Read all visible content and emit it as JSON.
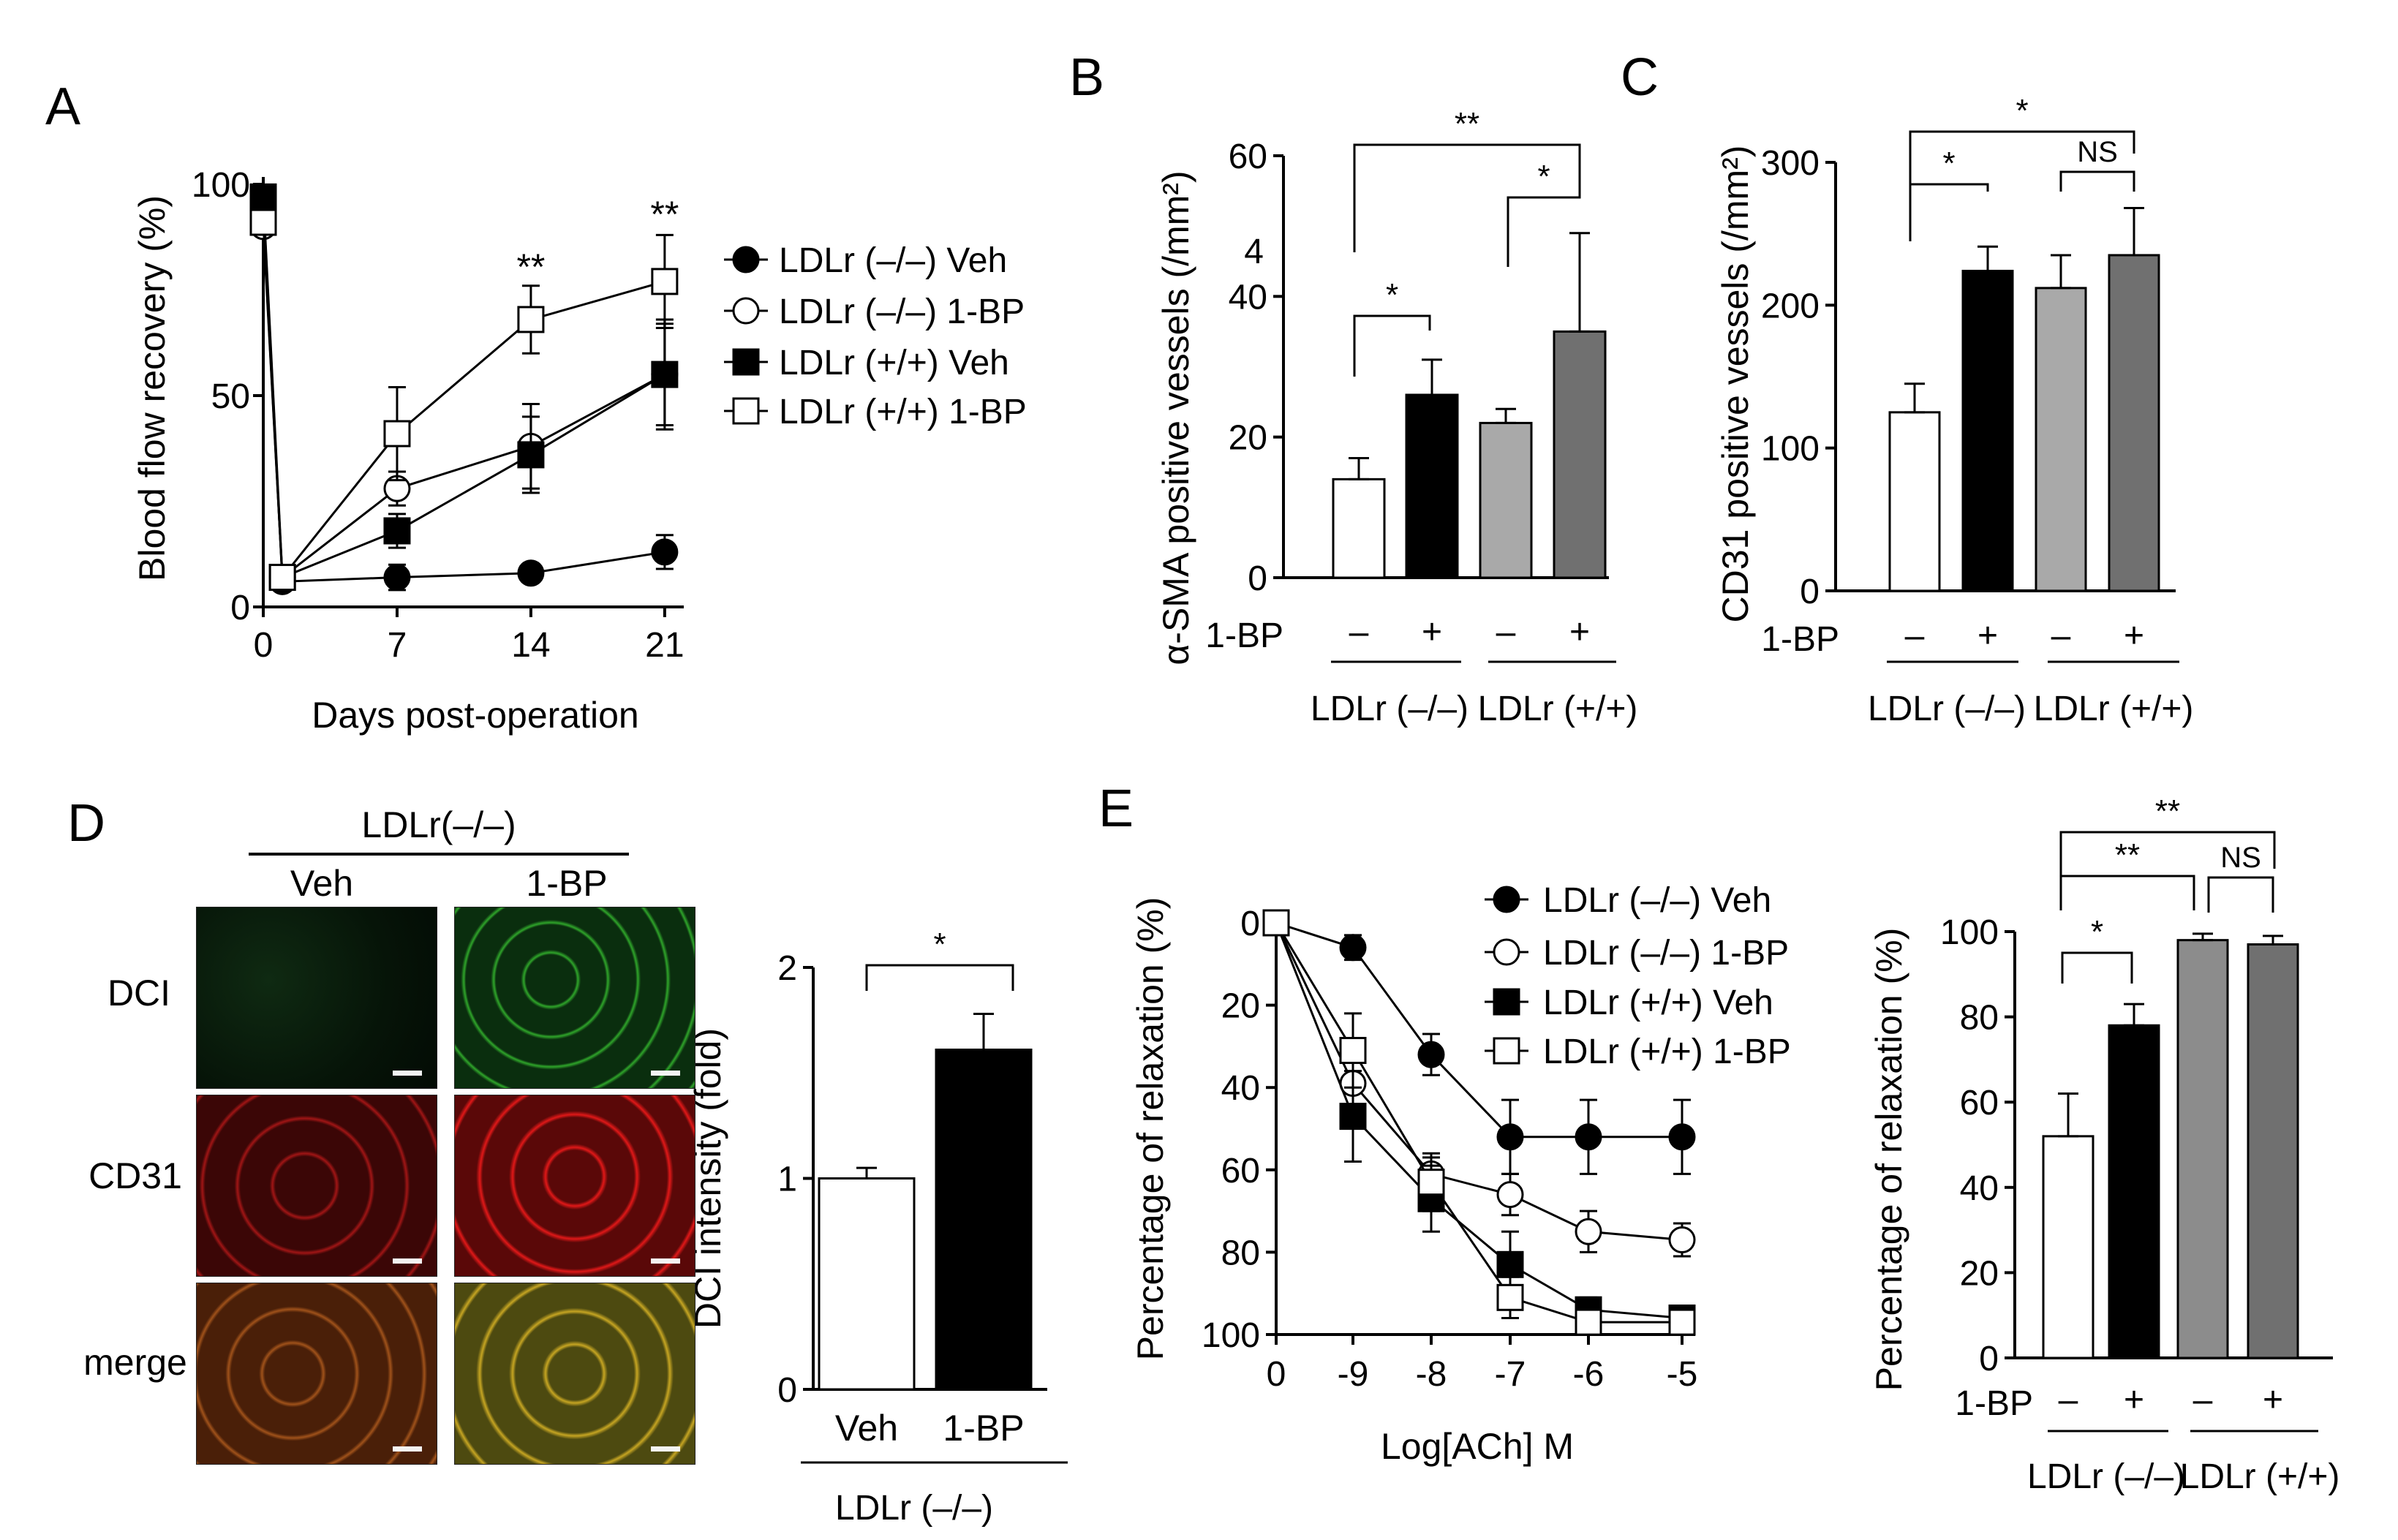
{
  "figure": {
    "panels": [
      {
        "letter": "A",
        "name": "panel-a"
      },
      {
        "letter": "B",
        "name": "panel-b"
      },
      {
        "letter": "C",
        "name": "panel-c"
      },
      {
        "letter": "D",
        "name": "panel-d"
      },
      {
        "letter": "E",
        "name": "panel-e"
      }
    ]
  },
  "colors": {
    "axis": "#000000",
    "white_bar": "#ffffff",
    "black_bar": "#000000",
    "light_gray_bar": "#a9a9a9",
    "dark_gray_bar": "#707070",
    "dci_green": "#33cc33",
    "cd31_red": "#e01818"
  },
  "microscopy": {
    "group_label": "LDLr(–/–)",
    "column_labels": [
      "Veh",
      "1-BP"
    ],
    "row_labels": [
      "DCI",
      "CD31",
      "merge"
    ]
  },
  "chart_data": [
    {
      "panel": "A",
      "type": "line",
      "xlabel": "Days post-operation",
      "ylabel": "Blood flow recovery (%)",
      "x": [
        0,
        1,
        7,
        14,
        21
      ],
      "xticks": [
        "0",
        "7",
        "14",
        "21"
      ],
      "xtick_values": [
        0,
        7,
        14,
        21
      ],
      "yticks": [
        "0",
        "50",
        "100"
      ],
      "ytick_values": [
        0,
        50,
        100
      ],
      "xlim": [
        0,
        22
      ],
      "ylim": [
        0,
        100
      ],
      "series": [
        {
          "name": "LDLr (–/–) Veh",
          "marker": "circle-filled",
          "values": [
            96,
            6,
            7,
            8,
            13
          ],
          "err": [
            2,
            2,
            3,
            2,
            4
          ]
        },
        {
          "name": "LDLr (–/–) 1-BP",
          "marker": "circle-open",
          "values": [
            90,
            7,
            28,
            38,
            55
          ],
          "err": [
            2,
            2,
            4,
            10,
            12
          ]
        },
        {
          "name": "LDLr (+/+) Veh",
          "marker": "square-filled",
          "values": [
            97,
            7,
            18,
            36,
            55
          ],
          "err": [
            2,
            2,
            4,
            9,
            13
          ]
        },
        {
          "name": "LDLr (+/+) 1-BP",
          "marker": "square-open",
          "values": [
            91,
            7,
            41,
            68,
            77
          ],
          "err": [
            2,
            2,
            11,
            8,
            11
          ]
        }
      ],
      "annotations": [
        {
          "x": 14,
          "text": "**"
        },
        {
          "x": 21,
          "text": "**"
        }
      ]
    },
    {
      "panel": "B",
      "type": "bar",
      "ylabel": "α-SMA positive vessels (/mm²)",
      "ylim": [
        0,
        60
      ],
      "yticks": [
        "0",
        "20",
        "40",
        "60"
      ],
      "ytick_values": [
        0,
        20,
        40,
        60
      ],
      "stray_tick": "4",
      "categories": [
        "–",
        "+",
        "–",
        "+"
      ],
      "row_label": "1-BP",
      "groups": [
        "LDLr (–/–)",
        "LDLr (+/+)"
      ],
      "values": [
        14,
        26,
        22,
        35
      ],
      "err": [
        3,
        5,
        2,
        14
      ],
      "bar_colors": [
        "#ffffff",
        "#000000",
        "#a9a9a9",
        "#707070"
      ],
      "significance": [
        {
          "from": 0,
          "to": 1,
          "text": "*"
        },
        {
          "from": 2,
          "to": 3,
          "text": "*"
        },
        {
          "from": 0,
          "to": 3,
          "text": "**"
        }
      ]
    },
    {
      "panel": "C",
      "type": "bar",
      "ylabel": "CD31 positive vessels (/mm²)",
      "ylim": [
        0,
        300
      ],
      "yticks": [
        "0",
        "100",
        "200",
        "300"
      ],
      "ytick_values": [
        0,
        100,
        200,
        300
      ],
      "categories": [
        "–",
        "+",
        "–",
        "+"
      ],
      "row_label": "1-BP",
      "groups": [
        "LDLr (–/–)",
        "LDLr (+/+)"
      ],
      "values": [
        125,
        224,
        212,
        235
      ],
      "err": [
        20,
        17,
        23,
        33
      ],
      "bar_colors": [
        "#ffffff",
        "#000000",
        "#a9a9a9",
        "#707070"
      ],
      "significance": [
        {
          "from": 0,
          "to": 1,
          "text": "*"
        },
        {
          "from": 2,
          "to": 3,
          "text": "NS"
        },
        {
          "from": 0,
          "to": 3,
          "text": "*"
        }
      ]
    },
    {
      "panel": "D",
      "type": "bar",
      "ylabel": "DCI intensity (fold)",
      "ylim": [
        0,
        2
      ],
      "yticks": [
        "0",
        "1",
        "2"
      ],
      "ytick_values": [
        0,
        1,
        2
      ],
      "categories": [
        "Veh",
        "1-BP"
      ],
      "group": "LDLr (–/–)",
      "values": [
        1.0,
        1.61
      ],
      "err": [
        0.05,
        0.17
      ],
      "bar_colors": [
        "#ffffff",
        "#000000"
      ],
      "significance": [
        {
          "from": 0,
          "to": 1,
          "text": "*"
        }
      ]
    },
    {
      "panel": "E",
      "type": "line",
      "ylabel": "Percentage of relaxation (%)",
      "xlabel": "Log[ACh] M",
      "x": [
        0,
        -9,
        -8,
        -7,
        -6,
        -5
      ],
      "xticks": [
        "0",
        "-9",
        "-8",
        "-7",
        "-6",
        "-5"
      ],
      "yticks": [
        "0",
        "20",
        "40",
        "60",
        "80",
        "100"
      ],
      "ytick_values": [
        0,
        20,
        40,
        60,
        80,
        100
      ],
      "ylim": [
        0,
        100
      ],
      "y_inverted": true,
      "series": [
        {
          "name": "LDLr (–/–) Veh",
          "marker": "circle-filled",
          "values": [
            0,
            6,
            32,
            52,
            52,
            52
          ],
          "err": [
            0,
            3,
            5,
            9,
            9,
            9
          ]
        },
        {
          "name": "LDLr (–/–) 1-BP",
          "marker": "circle-open",
          "values": [
            0,
            39,
            61,
            66,
            75,
            77
          ],
          "err": [
            0,
            6,
            4,
            5,
            5,
            4
          ]
        },
        {
          "name": "LDLr (+/+) Veh",
          "marker": "square-filled",
          "values": [
            0,
            47,
            67,
            83,
            94,
            96
          ],
          "err": [
            0,
            11,
            8,
            8,
            3,
            2
          ]
        },
        {
          "name": "LDLr (+/+) 1-BP",
          "marker": "square-open",
          "values": [
            0,
            31,
            63,
            91,
            97,
            97
          ],
          "err": [
            0,
            9,
            7,
            5,
            2,
            2
          ]
        }
      ]
    },
    {
      "panel": "E2",
      "type": "bar",
      "ylabel": "Percentage of relaxation (%)",
      "ylim": [
        0,
        100
      ],
      "yticks": [
        "0",
        "20",
        "40",
        "60",
        "80",
        "100"
      ],
      "ytick_values": [
        0,
        20,
        40,
        60,
        80,
        100
      ],
      "categories": [
        "–",
        "+",
        "–",
        "+"
      ],
      "row_label": "1-BP",
      "groups": [
        "LDLr (–/–)",
        "LDLr (+/+)"
      ],
      "values": [
        52,
        78,
        98,
        97
      ],
      "err": [
        10,
        5,
        1.5,
        2
      ],
      "bar_colors": [
        "#ffffff",
        "#000000",
        "#8c8c8c",
        "#707070"
      ],
      "significance": [
        {
          "from": 0,
          "to": 1,
          "text": "*"
        },
        {
          "from": 2,
          "to": 3,
          "text": "NS"
        },
        {
          "from": 0,
          "to": 2,
          "text": "**"
        },
        {
          "from": 0,
          "to": 3,
          "text": "**"
        }
      ]
    }
  ]
}
